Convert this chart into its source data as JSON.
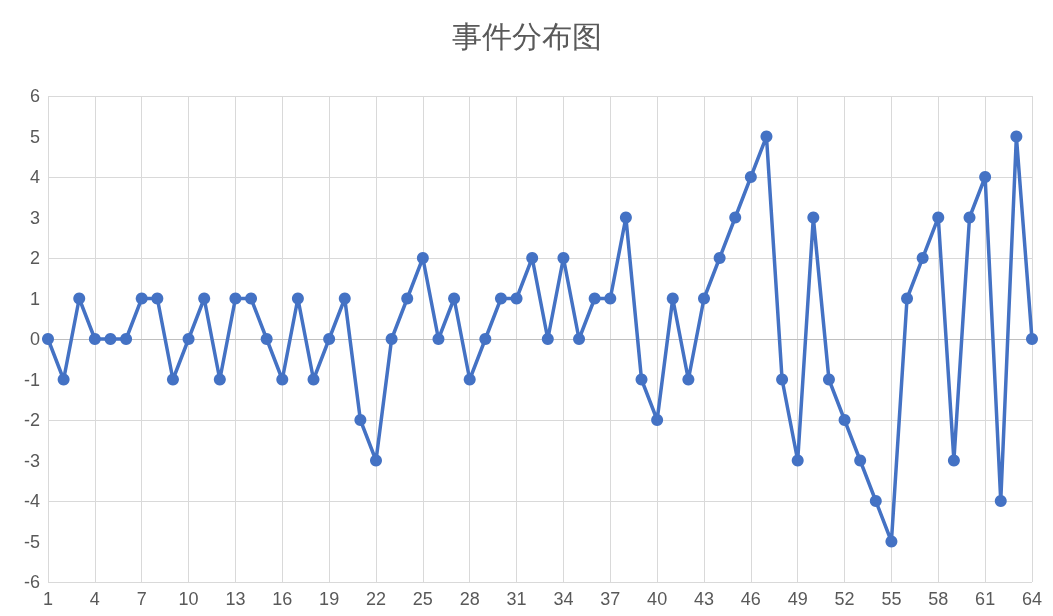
{
  "chart_data": {
    "type": "line",
    "title": "事件分布图",
    "categories": [
      "1",
      null,
      null,
      "4",
      null,
      null,
      "7",
      null,
      null,
      "10",
      null,
      null,
      "13",
      null,
      null,
      "16",
      null,
      null,
      "19",
      null,
      null,
      "22",
      null,
      null,
      "25",
      null,
      null,
      "28",
      null,
      null,
      "31",
      null,
      null,
      "34",
      null,
      null,
      "37",
      null,
      null,
      "40",
      null,
      null,
      "43",
      null,
      null,
      "46",
      null,
      null,
      "49",
      null,
      null,
      "52",
      null,
      null,
      "55",
      null,
      null,
      "58",
      null,
      null,
      "61",
      null,
      null,
      "64"
    ],
    "series": [
      {
        "color": "#4472c4",
        "values": [
          0,
          -1,
          1,
          0,
          0,
          0,
          1,
          1,
          -1,
          0,
          1,
          -1,
          1,
          1,
          0,
          -1,
          1,
          -1,
          0,
          1,
          -2,
          -3,
          0,
          1,
          2,
          0,
          1,
          -1,
          0,
          1,
          1,
          2,
          0,
          2,
          0,
          1,
          1,
          3,
          -1,
          -2,
          1,
          -1,
          1,
          2,
          3,
          4,
          5,
          -1,
          -3,
          3,
          -1,
          -2,
          -3,
          -4,
          -5,
          1,
          2,
          3,
          -3,
          3,
          4,
          -4,
          5,
          0
        ]
      }
    ],
    "ylim": [
      -6,
      6
    ],
    "yticks": [
      -6,
      -5,
      -4,
      -3,
      -2,
      -1,
      0,
      1,
      2,
      3,
      4,
      5,
      6
    ],
    "grid": true,
    "marker": "circle",
    "line_style": "solid"
  }
}
